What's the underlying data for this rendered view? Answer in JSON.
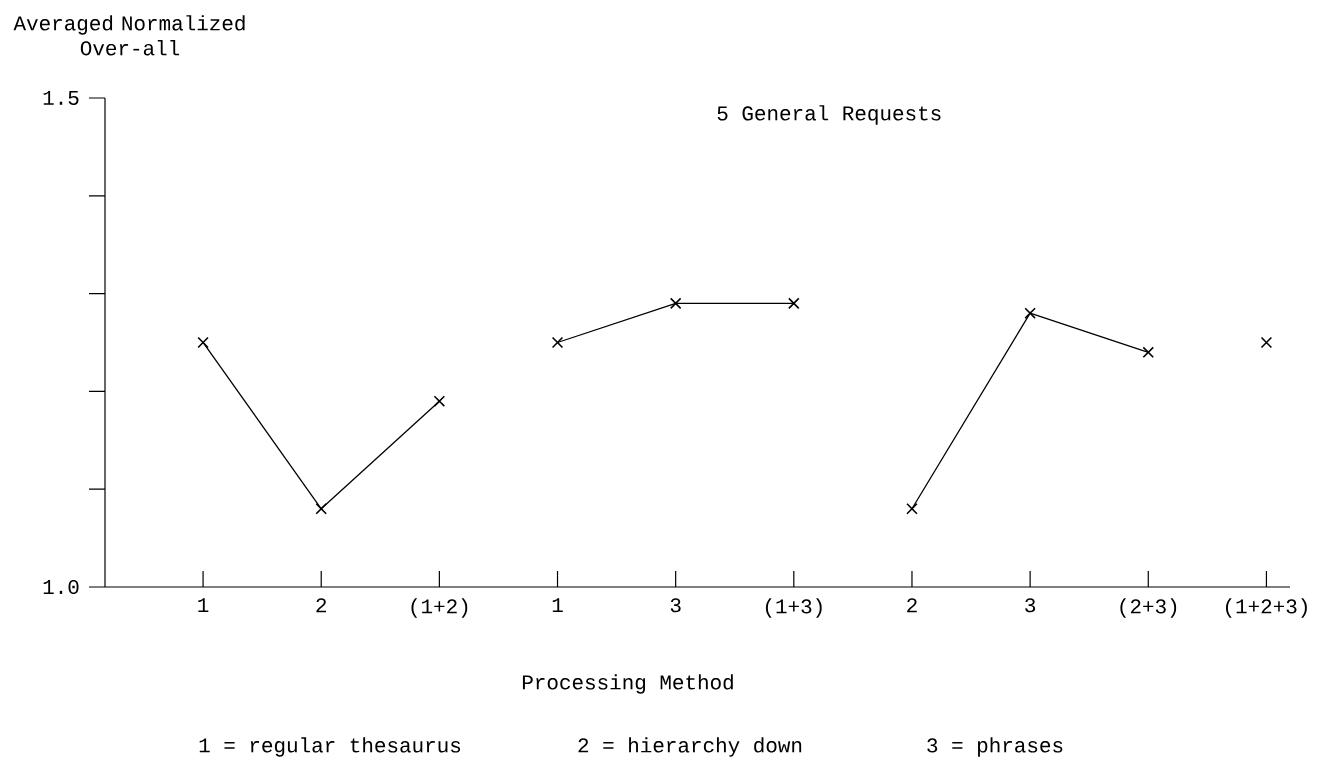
{
  "chart_data": {
    "type": "line",
    "title": "5 General Requests",
    "ylabel": "Averaged Normalized Over-all",
    "xlabel": "Processing Method",
    "categories": [
      "1",
      "2",
      "(1+2)",
      "1",
      "3",
      "(1+3)",
      "2",
      "3",
      "(2+3)",
      "(1+2+3)"
    ],
    "series": [
      {
        "color": "#000000",
        "values": [
          1.25,
          1.08,
          1.19,
          null,
          null,
          null,
          null,
          null,
          null,
          null
        ]
      },
      {
        "color": "#000000",
        "values": [
          null,
          null,
          null,
          1.25,
          1.29,
          1.29,
          null,
          null,
          null,
          null
        ]
      },
      {
        "color": "#000000",
        "values": [
          null,
          null,
          null,
          null,
          null,
          null,
          1.08,
          1.28,
          1.24,
          null
        ]
      },
      {
        "color": "#000000",
        "type": "scatter",
        "values": [
          null,
          null,
          null,
          null,
          null,
          null,
          null,
          null,
          null,
          1.25
        ]
      }
    ],
    "ylim": [
      1.0,
      1.5
    ],
    "yticks": [
      {
        "value": 1.0,
        "label": "1.0"
      },
      {
        "value": 1.1,
        "label": null
      },
      {
        "value": 1.2,
        "label": null
      },
      {
        "value": 1.3,
        "label": null
      },
      {
        "value": 1.4,
        "label": null
      },
      {
        "value": 1.5,
        "label": "1.5"
      }
    ],
    "marker": "cross",
    "line_style": "solid",
    "annotations": [
      "1 = regular thesaurus",
      "2 = hierarchy down",
      "3 = phrases"
    ]
  }
}
